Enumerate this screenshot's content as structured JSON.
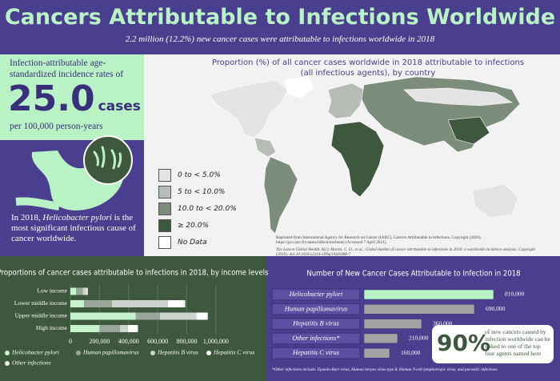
{
  "header": {
    "title": "Cancers Attributable to Infections Worldwide",
    "subtitle": "2.2 million (12.2%) new cancer cases were attributable to infections worldwide in 2018"
  },
  "incidence": {
    "intro": "Infection-attributable age-standardized incidence rates of",
    "value": "25.0",
    "unit": "cases",
    "per": "per 100,000 person-years"
  },
  "pylori_note": {
    "before": "In 2018, ",
    "name": "Helicobacter pylori",
    "after": " is the most significant infectious cause of cancer worldwide."
  },
  "map": {
    "title": "Proportion (%) of all cancer cases worldwide in 2018 attributable to infections (all infectious agents), by country",
    "legend": [
      {
        "label": "0 to < 5.0%",
        "color": "#e4e4e4"
      },
      {
        "label": "5 to < 10.0%",
        "color": "#b6bcb6"
      },
      {
        "label": "10.0 to < 20.0%",
        "color": "#7c8d7c"
      },
      {
        "label": "≥ 20.0%",
        "color": "#3e583e"
      },
      {
        "label": "No Data",
        "color": "#ffffff"
      }
    ],
    "credit_1": "Reprinted from International Agency for Research on Cancer (IARC), Cancers Attributable to Infections, Copyright (2020). https://gco.iarc.fr/causes/infections/home (Accessed 7 April 2021).",
    "credit_2": "The Lancet Global Health, 8(2), Martel, C. D., et al., Global burden of cancer attributable to infections in 2018: a worldwide incidence analysis, Copyright (2020). doi:10.1016/s2214-109x(19)30488-7"
  },
  "chart_data": [
    {
      "type": "bar",
      "orientation": "horizontal",
      "stacked": true,
      "title": "Proportions of cancer cases attributable to infections in 2018, by income levels",
      "categories": [
        "Low income",
        "Lower middle income",
        "Upper middle income",
        "High income"
      ],
      "series": [
        {
          "name": "Helicobacter pylori",
          "color": "#c4f3cc",
          "values": [
            40000,
            95000,
            450000,
            200000
          ]
        },
        {
          "name": "Human papillomavirus",
          "color": "#9aa69a",
          "values": [
            45000,
            190000,
            165000,
            140000
          ]
        },
        {
          "name": "Hepatitis B virus",
          "color": "#cfd3cf",
          "values": [
            25000,
            385000,
            250000,
            55000
          ]
        },
        {
          "name": "Hepatitis C virus",
          "color": "#ffffff",
          "values": [
            5000,
            110000,
            70000,
            65000
          ]
        },
        {
          "name": "Other infections",
          "color": "#e9ece9",
          "values": [
            5000,
            10000,
            10000,
            5000
          ]
        }
      ],
      "xlim": [
        0,
        1100000
      ],
      "xticks": [
        0,
        {
          "value": 200000,
          "label": "200,000"
        },
        {
          "value": 400000,
          "label": "400,000"
        },
        {
          "value": 600000,
          "label": "600,000"
        },
        {
          "value": 800000,
          "label": "800,000"
        },
        {
          "value": 1000000,
          "label": "1,000,000"
        }
      ],
      "grid": true
    },
    {
      "type": "bar",
      "orientation": "horizontal",
      "title": "Number of New Cancer Cases Attributable to Infection in 2018",
      "categories": [
        "Helicobacter pylori",
        "Human papillomavirus",
        "Hepatitis B virus",
        "Other infections*",
        "Hepatitis C virus"
      ],
      "values": [
        810000,
        690000,
        360000,
        210000,
        160000
      ],
      "value_labels": [
        "810,000",
        "690,000",
        "360,000",
        "210,000",
        "160,000"
      ],
      "colors": [
        "#b9f2c4",
        "#a3a3a3",
        "#a3a3a3",
        "#a3a3a3",
        "#a3a3a3"
      ],
      "xlim": [
        0,
        900000
      ]
    }
  ],
  "highlight": {
    "value": "90%",
    "text": "of new cancers caused by infection worldwide can be linked to one of the top four agents named here"
  },
  "footnote": "*Other infections include: Epstein-Barr virus, Human herpes virus type 8, Human T-cell lymphotropic virus, and parasitic infections"
}
